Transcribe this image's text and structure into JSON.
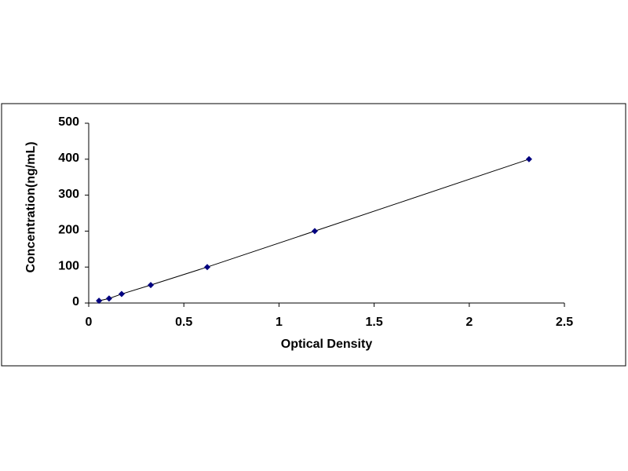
{
  "chart_data": {
    "type": "scatter",
    "x_label": "Optical Density",
    "y_label": "Concentration(ng/mL)",
    "series": [
      {
        "color": "#000080",
        "line_color": "#000000",
        "x": [
          0.054,
          0.107,
          0.173,
          0.326,
          0.623,
          1.188,
          2.314
        ],
        "values": [
          6.25,
          12.5,
          25,
          50,
          100,
          200,
          400
        ]
      }
    ],
    "line": true,
    "xlim": [
      0,
      2.5
    ],
    "xticks": [
      0,
      0.5,
      1,
      1.5,
      2,
      2.5
    ],
    "ylim": [
      0,
      500
    ],
    "yticks": [
      0,
      100,
      200,
      300,
      400,
      500
    ],
    "grid": false
  }
}
